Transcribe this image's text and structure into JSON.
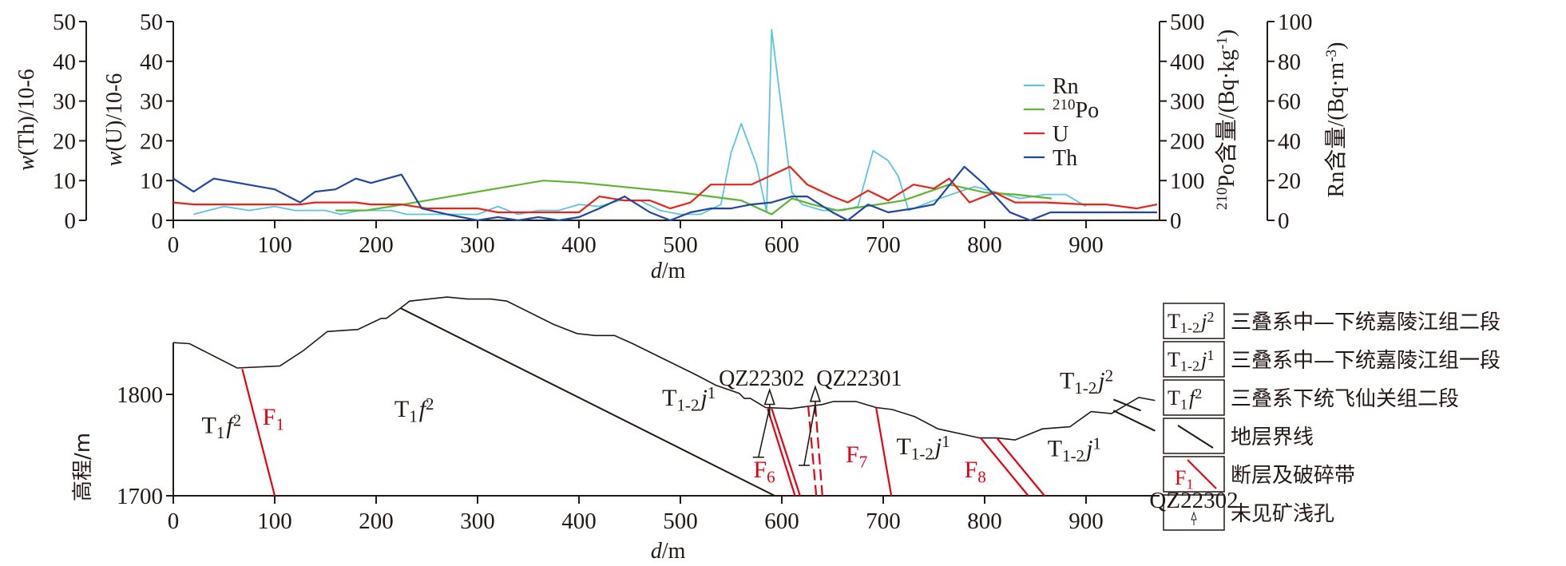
{
  "chart_data": [
    {
      "type": "line",
      "title": "",
      "xlabel": "d/m",
      "xlim": [
        0,
        970
      ],
      "x_ticks": [
        "0",
        "100",
        "200",
        "300",
        "400",
        "500",
        "600",
        "700",
        "800",
        "900"
      ],
      "axes": {
        "th": {
          "label": "w(Th)/10-6",
          "ylim": [
            0,
            50
          ],
          "ticks": [
            "0",
            "10",
            "20",
            "30",
            "40",
            "50"
          ]
        },
        "u": {
          "label": "w(U)/10-6",
          "ylim": [
            0,
            50
          ],
          "ticks": [
            "0",
            "10",
            "20",
            "30",
            "40",
            "50"
          ]
        },
        "po": {
          "label": "210Po含量/(Bq·kg-1)",
          "ylim": [
            0,
            500
          ],
          "ticks": [
            "0",
            "100",
            "200",
            "300",
            "400",
            "500"
          ]
        },
        "rn": {
          "label": "Rn含量/(Bq·m-3)",
          "ylim": [
            0,
            100
          ],
          "ticks": [
            "0",
            "20",
            "40",
            "60",
            "80",
            "100"
          ]
        }
      },
      "legend_position": "upper-right",
      "series": [
        {
          "name": "Rn",
          "axis": "rn",
          "color": "#5bc4de",
          "points": [
            [
              20,
              3
            ],
            [
              50,
              7
            ],
            [
              75,
              5
            ],
            [
              100,
              7
            ],
            [
              120,
              5
            ],
            [
              150,
              5
            ],
            [
              165,
              3
            ],
            [
              185,
              5
            ],
            [
              215,
              5
            ],
            [
              230,
              3
            ],
            [
              300,
              3
            ],
            [
              320,
              7
            ],
            [
              340,
              3
            ],
            [
              360,
              5
            ],
            [
              380,
              5
            ],
            [
              400,
              8
            ],
            [
              420,
              7
            ],
            [
              440,
              10
            ],
            [
              460,
              10
            ],
            [
              480,
              5
            ],
            [
              500,
              3
            ],
            [
              520,
              3
            ],
            [
              540,
              8
            ],
            [
              550,
              34
            ],
            [
              560,
              48.6
            ],
            [
              575,
              28
            ],
            [
              585,
              4
            ],
            [
              590,
              96
            ],
            [
              610,
              14
            ],
            [
              620,
              8
            ],
            [
              640,
              5
            ],
            [
              660,
              5
            ],
            [
              675,
              7
            ],
            [
              690,
              35
            ],
            [
              705,
              30
            ],
            [
              715,
              22
            ],
            [
              725,
              5
            ],
            [
              750,
              10
            ],
            [
              790,
              17
            ],
            [
              820,
              13
            ],
            [
              835,
              11
            ],
            [
              860,
              13
            ],
            [
              880,
              13
            ],
            [
              900,
              7
            ]
          ]
        },
        {
          "name": "210Po",
          "axis": "po",
          "color": "#5db531",
          "points": [
            [
              160,
              25
            ],
            [
              190,
              25
            ],
            [
              215,
              35
            ],
            [
              365,
              100
            ],
            [
              400,
              95
            ],
            [
              500,
              70
            ],
            [
              560,
              50
            ],
            [
              590,
              15
            ],
            [
              610,
              55
            ],
            [
              630,
              40
            ],
            [
              655,
              25
            ],
            [
              695,
              40
            ],
            [
              720,
              50
            ],
            [
              765,
              90
            ],
            [
              800,
              70
            ],
            [
              830,
              65
            ],
            [
              866,
              55
            ]
          ]
        },
        {
          "name": "U",
          "axis": "u",
          "color": "#e8231a",
          "points": [
            [
              0,
              4.5
            ],
            [
              20,
              4
            ],
            [
              40,
              4
            ],
            [
              100,
              4
            ],
            [
              125,
              4
            ],
            [
              140,
              4.5
            ],
            [
              180,
              4.5
            ],
            [
              195,
              4
            ],
            [
              225,
              4
            ],
            [
              250,
              3
            ],
            [
              300,
              3
            ],
            [
              320,
              2
            ],
            [
              340,
              2
            ],
            [
              400,
              2
            ],
            [
              420,
              6
            ],
            [
              445,
              5
            ],
            [
              470,
              5
            ],
            [
              490,
              3
            ],
            [
              510,
              4.5
            ],
            [
              530,
              9
            ],
            [
              570,
              9
            ],
            [
              608,
              13.5
            ],
            [
              625,
              9
            ],
            [
              650,
              6
            ],
            [
              665,
              4.5
            ],
            [
              685,
              7.5
            ],
            [
              705,
              5
            ],
            [
              730,
              9
            ],
            [
              750,
              8
            ],
            [
              765,
              10.5
            ],
            [
              785,
              4.5
            ],
            [
              810,
              7
            ],
            [
              830,
              4.5
            ],
            [
              860,
              4.5
            ],
            [
              900,
              4
            ],
            [
              920,
              4
            ],
            [
              950,
              3
            ],
            [
              970,
              4
            ]
          ]
        },
        {
          "name": "Th",
          "axis": "th",
          "color": "#1f47a0",
          "points": [
            [
              0,
              10.5
            ],
            [
              20,
              7.2
            ],
            [
              40,
              10.5
            ],
            [
              100,
              7.8
            ],
            [
              125,
              4.5
            ],
            [
              140,
              7.2
            ],
            [
              160,
              7.8
            ],
            [
              180,
              10.5
            ],
            [
              195,
              9.4
            ],
            [
              225,
              11.5
            ],
            [
              245,
              3
            ],
            [
              270,
              1.5
            ],
            [
              300,
              0
            ],
            [
              320,
              0.8
            ],
            [
              340,
              0
            ],
            [
              360,
              0.8
            ],
            [
              380,
              0
            ],
            [
              400,
              0.8
            ],
            [
              420,
              3
            ],
            [
              445,
              6
            ],
            [
              470,
              2
            ],
            [
              490,
              0
            ],
            [
              510,
              2
            ],
            [
              530,
              3
            ],
            [
              550,
              3
            ],
            [
              570,
              4
            ],
            [
              590,
              4.5
            ],
            [
              610,
              6
            ],
            [
              625,
              6
            ],
            [
              650,
              2
            ],
            [
              665,
              0
            ],
            [
              685,
              4
            ],
            [
              705,
              2
            ],
            [
              730,
              3
            ],
            [
              750,
              4
            ],
            [
              780,
              13.5
            ],
            [
              800,
              9
            ],
            [
              825,
              2
            ],
            [
              845,
              0
            ],
            [
              865,
              2
            ],
            [
              900,
              2
            ],
            [
              970,
              2
            ]
          ]
        }
      ]
    },
    {
      "type": "cross-section",
      "xlabel": "d/m",
      "ylabel": "高程/m",
      "xlim": [
        0,
        970
      ],
      "ylim": [
        1700,
        1900
      ],
      "x_ticks": [
        "0",
        "100",
        "200",
        "300",
        "400",
        "500",
        "600",
        "700",
        "800",
        "900"
      ],
      "y_ticks": [
        {
          "v": 1700,
          "t": "1700"
        },
        {
          "v": 1800,
          "t": "1800"
        }
      ],
      "surface": [
        [
          0,
          1851
        ],
        [
          16,
          1850
        ],
        [
          63,
          1826
        ],
        [
          105,
          1828
        ],
        [
          128,
          1843
        ],
        [
          152,
          1862
        ],
        [
          182,
          1864
        ],
        [
          205,
          1875
        ],
        [
          210,
          1875
        ],
        [
          224,
          1885
        ],
        [
          233,
          1892
        ],
        [
          270,
          1896
        ],
        [
          290,
          1894
        ],
        [
          313,
          1894
        ],
        [
          329,
          1892
        ],
        [
          375,
          1869
        ],
        [
          398,
          1860
        ],
        [
          416,
          1858
        ],
        [
          435,
          1858
        ],
        [
          453,
          1850
        ],
        [
          516,
          1819
        ],
        [
          535,
          1809
        ],
        [
          558,
          1801
        ],
        [
          563,
          1796
        ],
        [
          569,
          1796
        ],
        [
          584,
          1787
        ],
        [
          609,
          1786
        ],
        [
          640,
          1790
        ],
        [
          651,
          1793
        ],
        [
          673,
          1793
        ],
        [
          693,
          1787
        ],
        [
          709,
          1785
        ],
        [
          731,
          1778
        ],
        [
          754,
          1766
        ],
        [
          795,
          1757
        ],
        [
          812,
          1757
        ],
        [
          830,
          1755
        ],
        [
          857,
          1766
        ],
        [
          884,
          1768
        ],
        [
          905,
          1783
        ],
        [
          925,
          1781
        ],
        [
          952,
          1797
        ],
        [
          968,
          1794
        ]
      ],
      "boundaries": [
        [
          [
            224,
            1885
          ],
          [
            593,
            1700
          ]
        ],
        [
          [
            927,
            1784
          ],
          [
            968,
            1764
          ]
        ],
        [
          [
            927,
            1795
          ],
          [
            954,
            1784
          ]
        ]
      ],
      "faults": [
        {
          "name": "F1",
          "lines": [
            [
              [
                68,
                1825
              ],
              [
                100,
                1700
              ]
            ]
          ],
          "dashed": false
        },
        {
          "name": "F6",
          "lines": [
            [
              [
                586,
                1786
              ],
              [
                613,
                1700
              ]
            ],
            [
              [
                590,
                1786
              ],
              [
                618,
                1700
              ]
            ]
          ],
          "dashed": false
        },
        {
          "name": "",
          "lines": [
            [
              [
                626,
                1789
              ],
              [
                634,
                1700
              ]
            ],
            [
              [
                633,
                1789
              ],
              [
                640,
                1700
              ]
            ]
          ],
          "dashed": true
        },
        {
          "name": "F7",
          "lines": [
            [
              [
                693,
                1787
              ],
              [
                708,
                1700
              ]
            ]
          ],
          "dashed": false
        },
        {
          "name": "F8",
          "lines": [
            [
              [
                796,
                1757
              ],
              [
                843,
                1700
              ]
            ],
            [
              [
                812,
                1757
              ],
              [
                859,
                1700
              ]
            ]
          ],
          "dashed": false
        }
      ],
      "fault_labels": [
        {
          "base": "F",
          "sub": "1",
          "d": 88,
          "h": 1770
        },
        {
          "base": "F",
          "sub": "6",
          "d": 572,
          "h": 1718
        },
        {
          "base": "F",
          "sub": "7",
          "d": 663,
          "h": 1733
        },
        {
          "base": "F",
          "sub": "8",
          "d": 780,
          "h": 1718
        }
      ],
      "boreholes": [
        {
          "name": "QZ22302",
          "top": [
            588,
            1787
          ],
          "bottom": [
            577,
            1738
          ]
        },
        {
          "name": "QZ22301",
          "top": [
            633,
            1790
          ],
          "bottom": [
            622,
            1730
          ]
        }
      ],
      "strata_labels": [
        {
          "base": "T",
          "sub": "1",
          "it": "f",
          "sup": "2",
          "d": 28,
          "h": 1762
        },
        {
          "base": "T",
          "sub": "1",
          "it": "f",
          "sup": "2",
          "d": 218,
          "h": 1778
        },
        {
          "base": "T",
          "sub": "1-2",
          "it": "j",
          "sup": "1",
          "d": 482,
          "h": 1789
        },
        {
          "base": "T",
          "sub": "1-2",
          "it": "j",
          "sup": "1",
          "d": 713,
          "h": 1741
        },
        {
          "base": "T",
          "sub": "1-2",
          "it": "j",
          "sup": "1",
          "d": 862,
          "h": 1739
        },
        {
          "base": "T",
          "sub": "1-2",
          "it": "j",
          "sup": "2",
          "d": 874,
          "h": 1806
        }
      ],
      "legend": [
        {
          "symbol": "strata",
          "base": "T",
          "sub": "1-2",
          "it": "j",
          "sup": "2",
          "text": "三叠系中—下统嘉陵江组二段"
        },
        {
          "symbol": "strata",
          "base": "T",
          "sub": "1-2",
          "it": "j",
          "sup": "1",
          "text": "三叠系中—下统嘉陵江组一段"
        },
        {
          "symbol": "strata",
          "base": "T",
          "sub": "1",
          "it": "f",
          "sup": "2",
          "text": "三叠系下统飞仙关组二段"
        },
        {
          "symbol": "boundary",
          "text": "地层界线"
        },
        {
          "symbol": "fault",
          "base": "F",
          "sub": "1",
          "text": "断层及破碎带"
        },
        {
          "symbol": "borehole",
          "label": "QZ22302",
          "text": "未见矿浅孔"
        }
      ]
    }
  ]
}
